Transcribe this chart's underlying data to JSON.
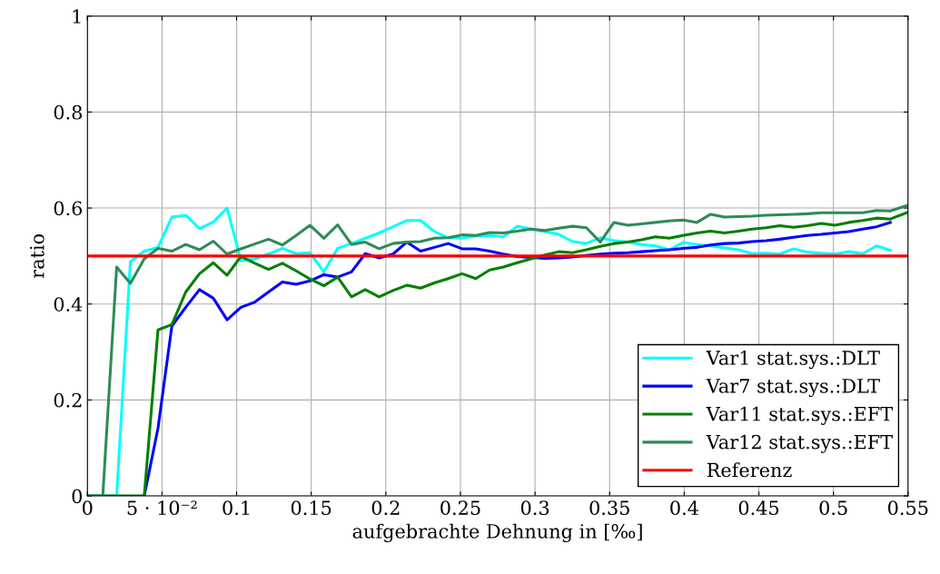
{
  "chart_data": {
    "type": "line",
    "xlabel": "aufgebrachte Dehnung in [‰]",
    "ylabel": "ratio",
    "x": [
      0,
      0.0103,
      0.0196,
      0.0288,
      0.0381,
      0.0473,
      0.0566,
      0.0659,
      0.0751,
      0.0844,
      0.0936,
      0.1029,
      0.1122,
      0.1214,
      0.1307,
      0.1399,
      0.1492,
      0.1585,
      0.1677,
      0.177,
      0.1862,
      0.1955,
      0.2048,
      0.214,
      0.2233,
      0.2325,
      0.2418,
      0.2511,
      0.2603,
      0.2696,
      0.2788,
      0.2881,
      0.2974,
      0.3066,
      0.3159,
      0.3251,
      0.3344,
      0.3437,
      0.3529,
      0.3622,
      0.3714,
      0.3807,
      0.39,
      0.3992,
      0.4085,
      0.4177,
      0.427,
      0.4363,
      0.4455,
      0.4548,
      0.464,
      0.4733,
      0.4826,
      0.4918,
      0.5011,
      0.5103,
      0.5196,
      0.5289,
      0.5381,
      0.549
    ],
    "series": [
      {
        "name": "Var1 stat.sys.:DLT",
        "color": "#00ffff",
        "values": [
          0,
          0,
          0,
          0.488,
          0.51,
          0.518,
          0.581,
          0.585,
          0.557,
          0.571,
          0.6,
          0.49,
          0.494,
          0.504,
          0.516,
          0.505,
          0.507,
          0.467,
          0.516,
          0.526,
          0.537,
          0.548,
          0.561,
          0.574,
          0.574,
          0.551,
          0.538,
          0.537,
          0.542,
          0.543,
          0.54,
          0.562,
          0.556,
          0.551,
          0.545,
          0.53,
          0.526,
          0.538,
          0.532,
          0.529,
          0.524,
          0.521,
          0.513,
          0.528,
          0.524,
          0.521,
          0.517,
          0.513,
          0.505,
          0.506,
          0.504,
          0.515,
          0.508,
          0.506,
          0.504,
          0.509,
          0.505,
          0.521,
          0.512,
          null
        ]
      },
      {
        "name": "Var7 stat.sys.:DLT",
        "color": "#0000ff",
        "values": [
          null,
          null,
          null,
          null,
          0,
          0.141,
          0.354,
          0.393,
          0.43,
          0.412,
          0.367,
          0.393,
          0.404,
          0.425,
          0.446,
          0.441,
          0.448,
          0.461,
          0.456,
          0.467,
          0.505,
          0.496,
          0.504,
          0.529,
          0.51,
          0.518,
          0.526,
          0.515,
          0.515,
          0.51,
          0.504,
          0.499,
          0.497,
          0.495,
          0.496,
          0.498,
          0.501,
          0.504,
          0.506,
          0.507,
          0.509,
          0.511,
          0.513,
          0.516,
          0.518,
          0.523,
          0.526,
          0.527,
          0.53,
          0.532,
          0.535,
          0.539,
          0.543,
          0.545,
          0.548,
          0.551,
          0.556,
          0.561,
          0.57,
          null
        ]
      },
      {
        "name": "Var11 stat.sys.:EFT",
        "color": "#008000",
        "values": [
          0,
          0,
          0,
          0,
          0,
          0.346,
          0.357,
          0.425,
          0.463,
          0.486,
          0.46,
          0.499,
          0.485,
          0.472,
          0.485,
          0.469,
          0.452,
          0.438,
          0.456,
          0.415,
          0.43,
          0.415,
          0.428,
          0.439,
          0.433,
          0.444,
          0.453,
          0.463,
          0.453,
          0.471,
          0.477,
          0.486,
          0.494,
          0.502,
          0.509,
          0.507,
          0.513,
          0.52,
          0.526,
          0.529,
          0.534,
          0.54,
          0.537,
          0.543,
          0.548,
          0.552,
          0.548,
          0.552,
          0.556,
          0.559,
          0.563,
          0.56,
          0.563,
          0.568,
          0.564,
          0.57,
          0.574,
          0.579,
          0.577,
          0.59
        ]
      },
      {
        "name": "Var12 stat.sys.:EFT",
        "color": "#2e8b57",
        "values": [
          0,
          0,
          0.477,
          0.443,
          0.494,
          0.516,
          0.51,
          0.524,
          0.513,
          0.531,
          0.504,
          0.515,
          0.525,
          0.535,
          0.523,
          0.543,
          0.564,
          0.537,
          0.565,
          0.524,
          0.529,
          0.515,
          0.526,
          0.529,
          0.53,
          0.537,
          0.538,
          0.544,
          0.543,
          0.549,
          0.548,
          0.552,
          0.556,
          0.553,
          0.558,
          0.562,
          0.559,
          0.529,
          0.57,
          0.564,
          0.567,
          0.57,
          0.573,
          0.575,
          0.57,
          0.587,
          0.581,
          0.582,
          0.583,
          0.585,
          0.586,
          0.587,
          0.588,
          0.59,
          0.59,
          0.59,
          0.59,
          0.595,
          0.594,
          0.605
        ]
      },
      {
        "name": "Referenz",
        "color": "#ff0000",
        "x": [
          0,
          0.55
        ],
        "values": [
          0.5,
          0.5
        ]
      }
    ],
    "xlim": [
      0,
      0.55
    ],
    "xticks": [
      0,
      {
        "value": 0.05,
        "label": "5 · 10⁻²"
      },
      0.1,
      0.15,
      0.2,
      0.25,
      0.3,
      0.35,
      0.4,
      0.45,
      0.5,
      0.55
    ],
    "ylim": [
      0,
      1
    ],
    "yticks": [
      0,
      0.2,
      0.4,
      0.6,
      0.8,
      1
    ],
    "grid": true,
    "legend": "bottom right",
    "marker": "none",
    "line_style": "solid"
  }
}
